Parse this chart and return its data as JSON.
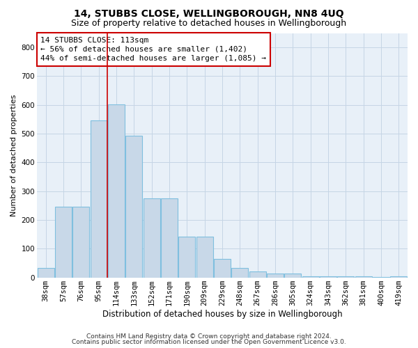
{
  "title1": "14, STUBBS CLOSE, WELLINGBOROUGH, NN8 4UQ",
  "title2": "Size of property relative to detached houses in Wellingborough",
  "xlabel": "Distribution of detached houses by size in Wellingborough",
  "ylabel": "Number of detached properties",
  "footer1": "Contains HM Land Registry data © Crown copyright and database right 2024.",
  "footer2": "Contains public sector information licensed under the Open Government Licence v3.0.",
  "annotation_line1": "14 STUBBS CLOSE: 113sqm",
  "annotation_line2": "← 56% of detached houses are smaller (1,402)",
  "annotation_line3": "44% of semi-detached houses are larger (1,085) →",
  "bar_color": "#c8d8e8",
  "bar_edge_color": "#7fbfdf",
  "vline_color": "#cc0000",
  "vline_x_idx": 4.0,
  "categories": [
    "38sqm",
    "57sqm",
    "76sqm",
    "95sqm",
    "114sqm",
    "133sqm",
    "152sqm",
    "171sqm",
    "190sqm",
    "209sqm",
    "229sqm",
    "248sqm",
    "267sqm",
    "286sqm",
    "305sqm",
    "324sqm",
    "343sqm",
    "362sqm",
    "381sqm",
    "400sqm",
    "419sqm"
  ],
  "values": [
    33,
    245,
    245,
    547,
    603,
    493,
    275,
    275,
    143,
    143,
    65,
    33,
    20,
    13,
    13,
    5,
    5,
    5,
    5,
    1,
    5
  ],
  "ylim": [
    0,
    850
  ],
  "yticks": [
    0,
    100,
    200,
    300,
    400,
    500,
    600,
    700,
    800
  ],
  "grid_color": "#c5d5e5",
  "bg_color": "#e8f0f8",
  "annotation_box_facecolor": "white",
  "annotation_box_edgecolor": "#cc0000",
  "title1_fontsize": 10,
  "title2_fontsize": 9,
  "xlabel_fontsize": 8.5,
  "ylabel_fontsize": 8,
  "tick_fontsize": 7.5,
  "annotation_fontsize": 8,
  "footer_fontsize": 6.5
}
